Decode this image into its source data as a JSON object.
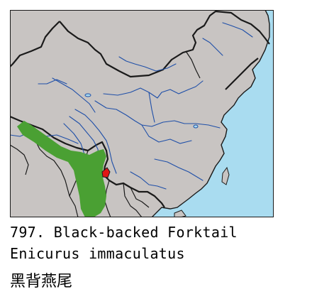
{
  "species": {
    "number_label": "797.",
    "english_name": "Black-backed Forktail",
    "scientific_name": "Enicurus immaculatus",
    "chinese_name": "黑背燕尾"
  },
  "map": {
    "colors": {
      "land": "#c8c4c2",
      "sea": "#a9dcf0",
      "border": "#1a1a1a",
      "river": "#1f4fa8",
      "range": "#4aa033",
      "highlight": "#e01515"
    }
  }
}
